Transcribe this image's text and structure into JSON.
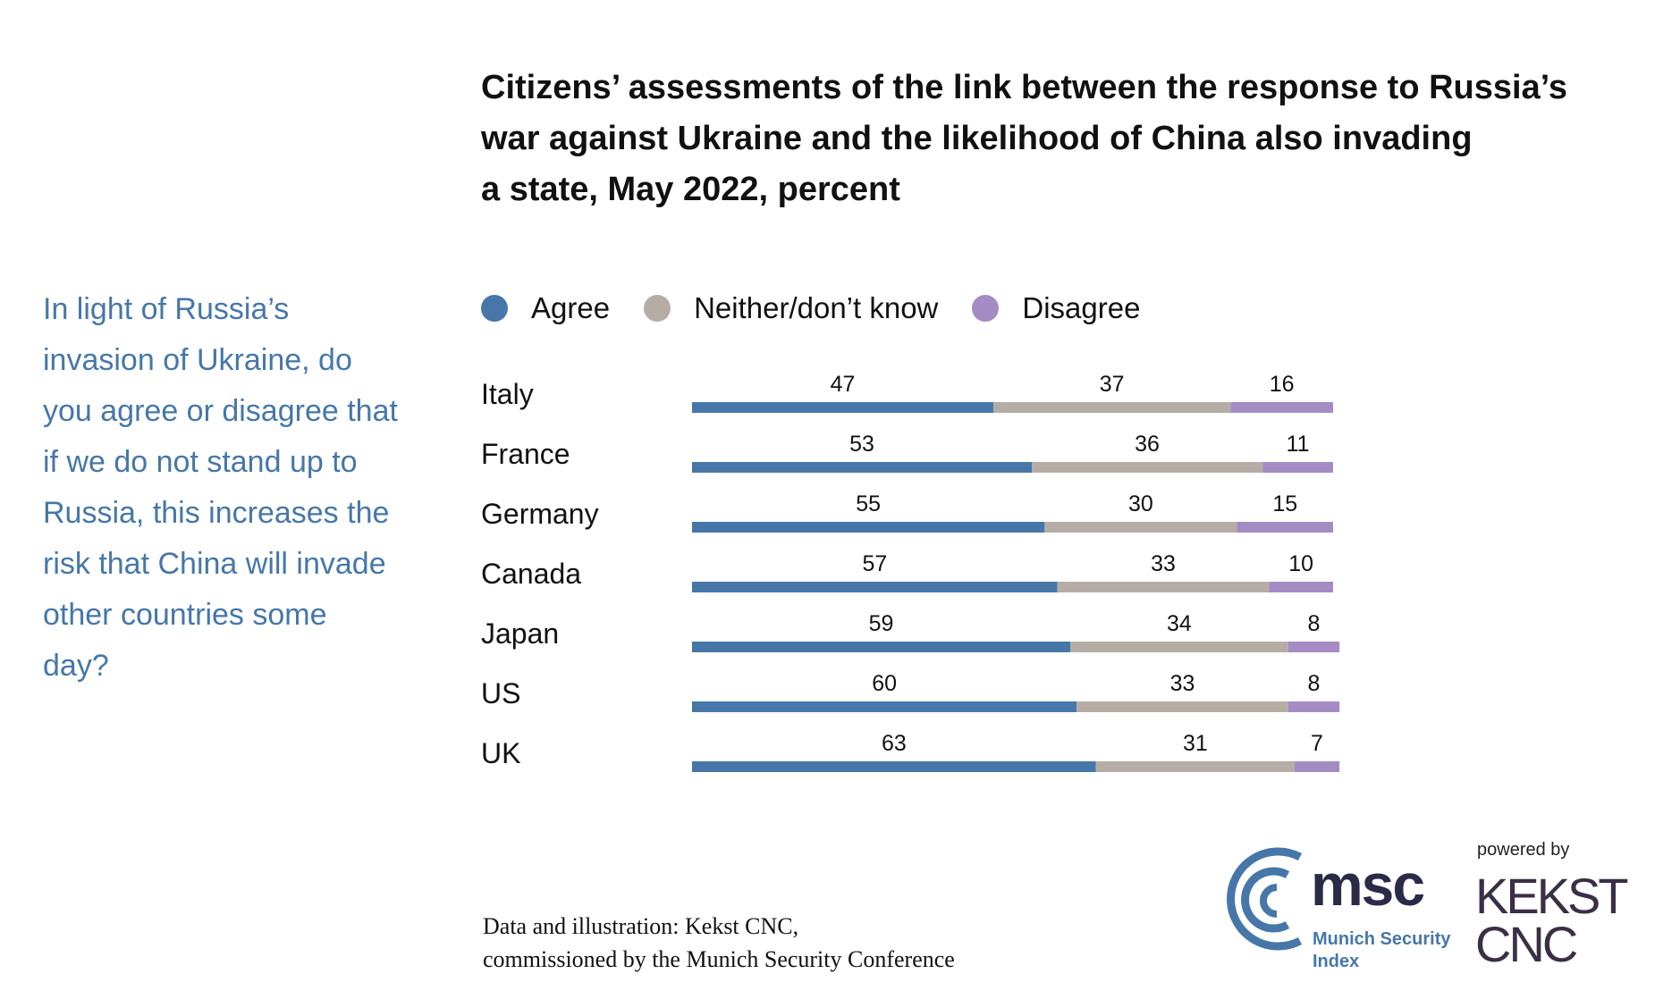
{
  "question": "In light of Russia’s invasion of Ukraine, do you agree or disagree that if we do not stand up to Russia, this increases the risk that China will invade other countries some day?",
  "source": {
    "line1": "Data and illustration: Kekst CNC,",
    "line2": "commissioned by the Munich Security Conference"
  },
  "logos": {
    "msc_word": "msc",
    "msc_line1": "Munich Security",
    "msc_line2": "Index",
    "powered_by": "powered by",
    "kekst_line1": "KEKST",
    "kekst_line2": "CNC"
  },
  "colors": {
    "agree": "#4677a8",
    "neither": "#b5ada5",
    "disagree": "#a58bc3"
  },
  "chart_data": {
    "type": "bar",
    "orientation": "horizontal",
    "stacked": true,
    "title": "Citizens’ assessments of the link between the response to Russia’s war against Ukraine and the likelihood of China also invading a state, May 2022, percent",
    "title_lines": [
      "Citizens’ assessments of the link between the response to Russia’s",
      "war against Ukraine and the likelihood of China also invading",
      "a state, May 2022, percent"
    ],
    "categories": [
      "Italy",
      "France",
      "Germany",
      "Canada",
      "Japan",
      "US",
      "UK"
    ],
    "series": [
      {
        "name": "Agree",
        "values": [
          47,
          53,
          55,
          57,
          59,
          60,
          63
        ]
      },
      {
        "name": "Neither/don’t know",
        "values": [
          37,
          36,
          30,
          33,
          34,
          33,
          31
        ]
      },
      {
        "name": "Disagree",
        "values": [
          16,
          11,
          15,
          10,
          8,
          8,
          7
        ]
      }
    ],
    "xlim": [
      0,
      100
    ],
    "legend_position": "top",
    "grid": false
  }
}
